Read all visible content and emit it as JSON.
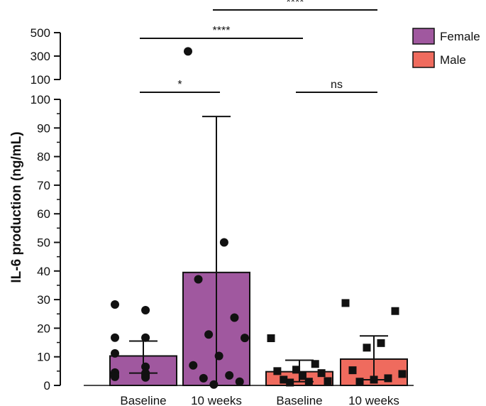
{
  "chart_data": {
    "type": "bar",
    "title": "",
    "xlabel": "",
    "ylabel": "IL-6 production (ng/mL)",
    "ylim_lower": [
      0,
      100
    ],
    "ylim_upper": [
      100,
      500
    ],
    "y_ticks_lower": [
      "0",
      "10",
      "20",
      "30",
      "40",
      "50",
      "60",
      "70",
      "80",
      "90",
      "100"
    ],
    "y_ticks_upper": [
      "100",
      "300",
      "500"
    ],
    "categories": [
      "Baseline",
      "10 weeks",
      "Baseline",
      "10 weeks"
    ],
    "series": [
      {
        "name": "Female",
        "color": "#a0589f",
        "marker": "circle",
        "bars": [
          {
            "category": "Baseline",
            "mean": 10.3,
            "error_high": 15.5,
            "error_low": 4.3,
            "points": [
              28.3,
              26.3,
              16.7,
              16.7,
              11.2,
              6.5,
              4.5,
              4.3,
              4.2,
              4.0,
              3.4,
              3.3,
              3.0,
              2.8
            ]
          },
          {
            "category": "10 weeks",
            "mean": 39.5,
            "error_high": 94.0,
            "error_low": 0,
            "points": [
              340,
              50,
              37.1,
              23.7,
              17.8,
              16.6,
              10.3,
              7.0,
              3.5,
              2.5,
              1.3,
              0.3
            ]
          }
        ]
      },
      {
        "name": "Male",
        "color": "#ef6b5e",
        "marker": "square",
        "bars": [
          {
            "category": "Baseline",
            "mean": 4.8,
            "error_high": 8.8,
            "error_low": 1.3,
            "points": [
              16.5,
              7.5,
              5.5,
              5.0,
              4.3,
              3.3,
              2.0,
              1.5,
              1.3,
              1.0
            ]
          },
          {
            "category": "10 weeks",
            "mean": 9.2,
            "error_high": 17.3,
            "error_low": 2.0,
            "points": [
              28.8,
              26.0,
              14.8,
              13.2,
              5.3,
              4.0,
              2.5,
              2.0,
              1.3
            ]
          }
        ]
      }
    ],
    "significance": [
      {
        "label": "*",
        "from": 0,
        "to": 1,
        "level": 100
      },
      {
        "label": "ns",
        "from": 2,
        "to": 3,
        "level": 100
      },
      {
        "label": "****",
        "from": 0,
        "to": 2,
        "level": 500
      },
      {
        "label": "****",
        "from": 1,
        "to": 3,
        "level": 1000
      }
    ],
    "legend": [
      {
        "label": "Female",
        "color": "#a0589f"
      },
      {
        "label": "Male",
        "color": "#ef6b5e"
      }
    ],
    "legend_position": "top-right"
  }
}
